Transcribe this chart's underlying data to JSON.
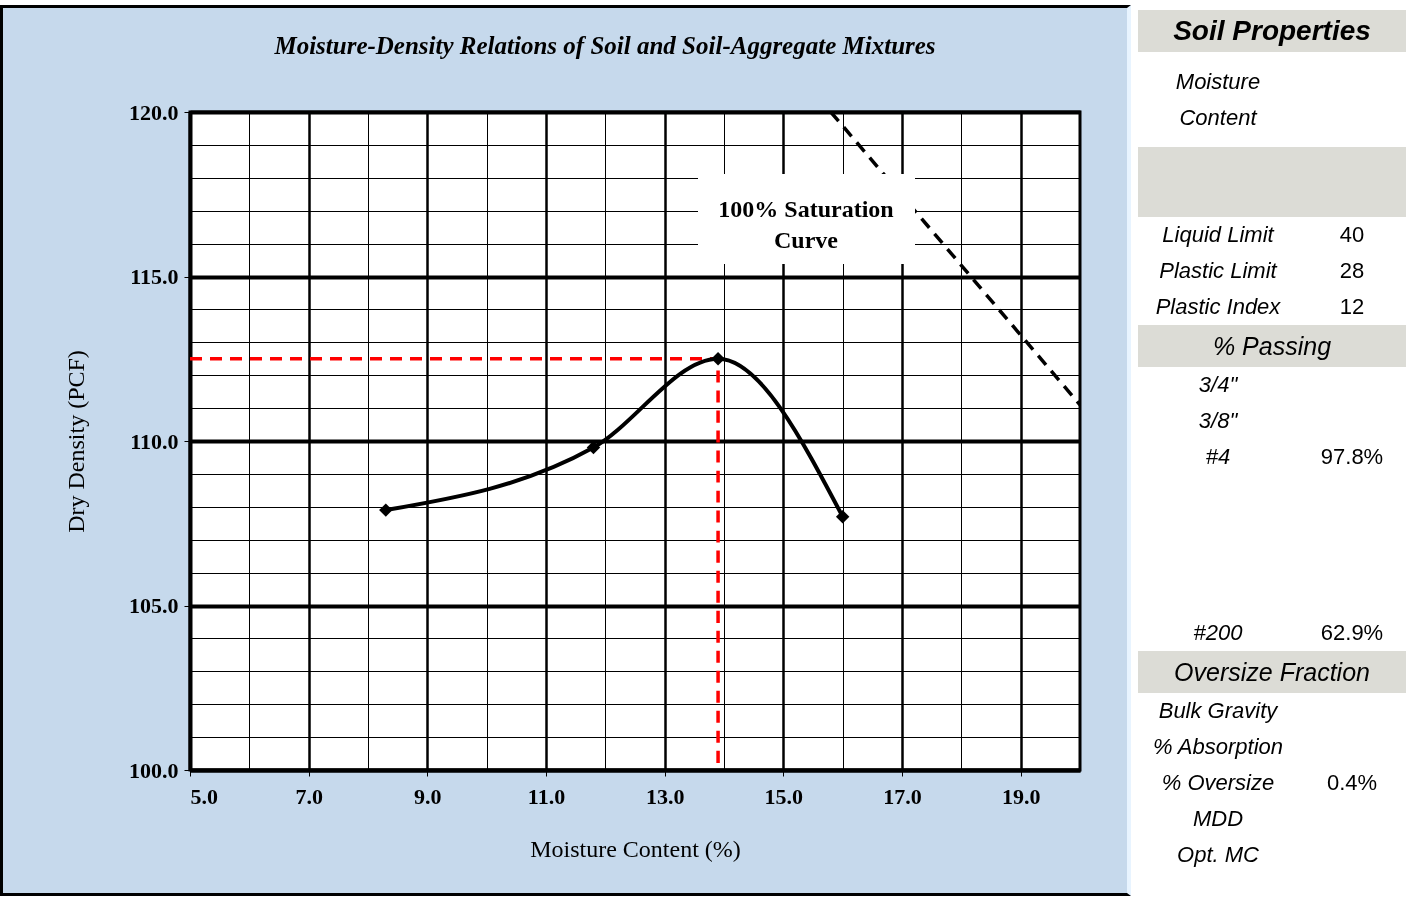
{
  "chart_data": [
    {
      "type": "line",
      "title": "Moisture-Density Relations of Soil and Soil-Aggregate Mixtures",
      "xlabel": "Moisture Content (%)",
      "ylabel": "Dry Density (PCF)",
      "xlim": [
        5,
        20
      ],
      "ylim": [
        100,
        120
      ],
      "xticks": [
        {
          "value": 5,
          "label": "5.0"
        },
        {
          "value": 6,
          "label": null
        },
        {
          "value": 7,
          "label": "7.0"
        },
        {
          "value": 8,
          "label": null
        },
        {
          "value": 9,
          "label": "9.0"
        },
        {
          "value": 10,
          "label": null
        },
        {
          "value": 11,
          "label": "11.0"
        },
        {
          "value": 12,
          "label": null
        },
        {
          "value": 13,
          "label": "13.0"
        },
        {
          "value": 14,
          "label": null
        },
        {
          "value": 15,
          "label": "15.0"
        },
        {
          "value": 16,
          "label": null
        },
        {
          "value": 17,
          "label": "17.0"
        },
        {
          "value": 18,
          "label": null
        },
        {
          "value": 19,
          "label": "19.0"
        },
        {
          "value": 20,
          "label": null
        }
      ],
      "yticks": [
        {
          "value": 100,
          "label": "100.0"
        },
        {
          "value": 101,
          "label": null
        },
        {
          "value": 102,
          "label": null
        },
        {
          "value": 103,
          "label": null
        },
        {
          "value": 104,
          "label": null
        },
        {
          "value": 105,
          "label": "105.0"
        },
        {
          "value": 106,
          "label": null
        },
        {
          "value": 107,
          "label": null
        },
        {
          "value": 108,
          "label": null
        },
        {
          "value": 109,
          "label": null
        },
        {
          "value": 110,
          "label": "110.0"
        },
        {
          "value": 111,
          "label": null
        },
        {
          "value": 112,
          "label": null
        },
        {
          "value": 113,
          "label": null
        },
        {
          "value": 114,
          "label": null
        },
        {
          "value": 115,
          "label": "115.0"
        },
        {
          "value": 116,
          "label": null
        },
        {
          "value": 117,
          "label": null
        },
        {
          "value": 118,
          "label": null
        },
        {
          "value": 119,
          "label": null
        },
        {
          "value": 120,
          "label": "120.0"
        }
      ],
      "grid": true,
      "series": [
        {
          "color": "#000000",
          "marker": "diamond",
          "line_style": "solid",
          "x": [
            8.3,
            11.8,
            13.9,
            16.0
          ],
          "values": [
            107.9,
            109.8,
            112.5,
            107.7
          ]
        },
        {
          "name": "100% Saturation Curve",
          "color": "#000000",
          "marker": "none",
          "line_style": "dashed",
          "x": [
            15.8,
            20.0
          ],
          "values": [
            120.0,
            111.1
          ]
        },
        {
          "color": "#ff0000",
          "marker": "none",
          "line_style": "dashed",
          "x": [
            5.0,
            13.9,
            13.9
          ],
          "values": [
            112.5,
            112.5,
            100.0
          ]
        }
      ]
    },
    {
      "type": "other",
      "title": "Soil Properties",
      "annotations": [
        "Moisture Content",
        "Liquid Limit",
        "40",
        "Plastic Limit",
        "28",
        "Plastic Index",
        "12",
        "% Passing",
        "3/4\"",
        "3/8\"",
        "#4",
        "97.8%",
        "#200",
        "62.9%",
        "Oversize Fraction",
        "Bulk Gravity",
        "% Absorption",
        "% Oversize",
        "0.4%",
        "MDD",
        "Opt. MC"
      ]
    }
  ]
}
